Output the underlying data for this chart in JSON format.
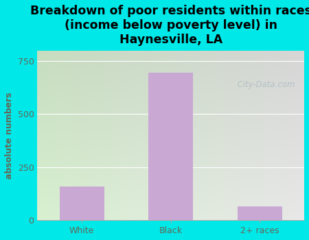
{
  "categories": [
    "White",
    "Black",
    "2+ races"
  ],
  "values": [
    160,
    695,
    65
  ],
  "bar_color": "#c9a8d4",
  "title": "Breakdown of poor residents within races\n(income below poverty level) in\nHaynesville, LA",
  "ylabel": "absolute numbers",
  "ylim": [
    0,
    800
  ],
  "yticks": [
    0,
    250,
    500,
    750
  ],
  "background_color": "#00e8e8",
  "plot_bg_left": "#d8f0d0",
  "plot_bg_right": "#e8e8e8",
  "title_fontsize": 12.5,
  "label_fontsize": 9,
  "tick_fontsize": 9,
  "ylabel_color": "#666655",
  "tick_color": "#666655",
  "watermark": "  City-Data.com",
  "bar_width": 0.5
}
